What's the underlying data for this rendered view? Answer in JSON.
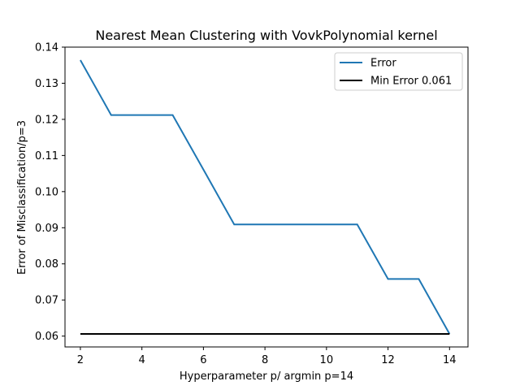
{
  "chart_data": {
    "type": "line",
    "title": "Nearest Mean Clustering with VovkPolynomial kernel",
    "xlabel": "Hyperparameter p/ argmin p=14",
    "ylabel": "Error of Misclassification/p=3",
    "xlim": [
      1.5,
      14.6
    ],
    "ylim": [
      0.057,
      0.14
    ],
    "x_ticks": [
      2,
      4,
      6,
      8,
      10,
      12,
      14
    ],
    "x_tick_labels": [
      "2",
      "4",
      "6",
      "8",
      "10",
      "12",
      "14"
    ],
    "y_ticks": [
      0.06,
      0.07,
      0.08,
      0.09,
      0.1,
      0.11,
      0.12,
      0.13,
      0.14
    ],
    "y_tick_labels": [
      "0.06",
      "0.07",
      "0.08",
      "0.09",
      "0.10",
      "0.11",
      "0.12",
      "0.13",
      "0.14"
    ],
    "legend_position": "top-right",
    "series": [
      {
        "name": "Error",
        "color": "#1f77b4",
        "x": [
          2,
          3,
          4,
          5,
          6,
          7,
          8,
          9,
          10,
          11,
          12,
          13,
          14
        ],
        "y": [
          0.1364,
          0.1212,
          0.1212,
          0.1212,
          0.1061,
          0.0909,
          0.0909,
          0.0909,
          0.0909,
          0.0909,
          0.0758,
          0.0758,
          0.0606
        ]
      },
      {
        "name": "Min Error 0.061",
        "color": "#000000",
        "x": [
          2,
          14
        ],
        "y": [
          0.0606,
          0.0606
        ]
      }
    ]
  }
}
